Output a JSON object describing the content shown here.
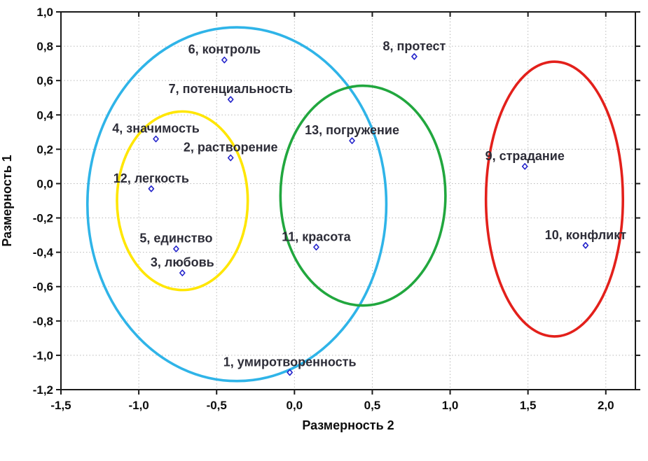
{
  "chart_data": {
    "type": "scatter",
    "title": "",
    "xlabel": "Размерность 2",
    "ylabel": "Размерность 1",
    "xlim": [
      -1.5,
      2.19
    ],
    "ylim": [
      -1.2,
      1.0
    ],
    "x_ticks": [
      -1.5,
      -1.0,
      -0.5,
      0.0,
      0.5,
      1.0,
      1.5,
      2.0
    ],
    "y_ticks": [
      1.0,
      0.8,
      0.6,
      0.4,
      0.2,
      0.0,
      -0.2,
      -0.4,
      -0.6,
      -0.8,
      -1.0,
      -1.2
    ],
    "decimal_separator": ",",
    "grid": "dotted",
    "legend": "none",
    "marker": {
      "shape": "open-diamond",
      "color": "#2424CB"
    },
    "points": [
      {
        "label": "1, умиротворенность",
        "x": -0.03,
        "y": -1.1
      },
      {
        "label": "2, растворение",
        "x": -0.41,
        "y": 0.15
      },
      {
        "label": "3, любовь",
        "x": -0.72,
        "y": -0.52
      },
      {
        "label": "4, значимость",
        "x": -0.89,
        "y": 0.26
      },
      {
        "label": "5, единство",
        "x": -0.76,
        "y": -0.38
      },
      {
        "label": "6, контроль",
        "x": -0.45,
        "y": 0.72
      },
      {
        "label": "7, потенциальность",
        "x": -0.41,
        "y": 0.49
      },
      {
        "label": "8, протест",
        "x": 0.77,
        "y": 0.74
      },
      {
        "label": "9, страдание",
        "x": 1.48,
        "y": 0.1
      },
      {
        "label": "10, конфликт",
        "x": 1.87,
        "y": -0.36
      },
      {
        "label": "11, красота",
        "x": 0.14,
        "y": -0.37
      },
      {
        "label": "12, легкость",
        "x": -0.92,
        "y": -0.03
      },
      {
        "label": "13, погружение",
        "x": 0.37,
        "y": 0.25
      }
    ],
    "ellipses": [
      {
        "name": "cluster-ellipse-cyan",
        "color": "#2FB4E8",
        "cx": -0.37,
        "cy": -0.12,
        "rx": 0.96,
        "ry": 1.03
      },
      {
        "name": "cluster-ellipse-yellow",
        "color": "#FFE600",
        "cx": -0.72,
        "cy": -0.1,
        "rx": 0.42,
        "ry": 0.52
      },
      {
        "name": "cluster-ellipse-green",
        "color": "#21A73E",
        "cx": 0.44,
        "cy": -0.07,
        "rx": 0.53,
        "ry": 0.64
      },
      {
        "name": "cluster-ellipse-red",
        "color": "#E3201B",
        "cx": 1.67,
        "cy": -0.09,
        "rx": 0.44,
        "ry": 0.8
      }
    ]
  }
}
